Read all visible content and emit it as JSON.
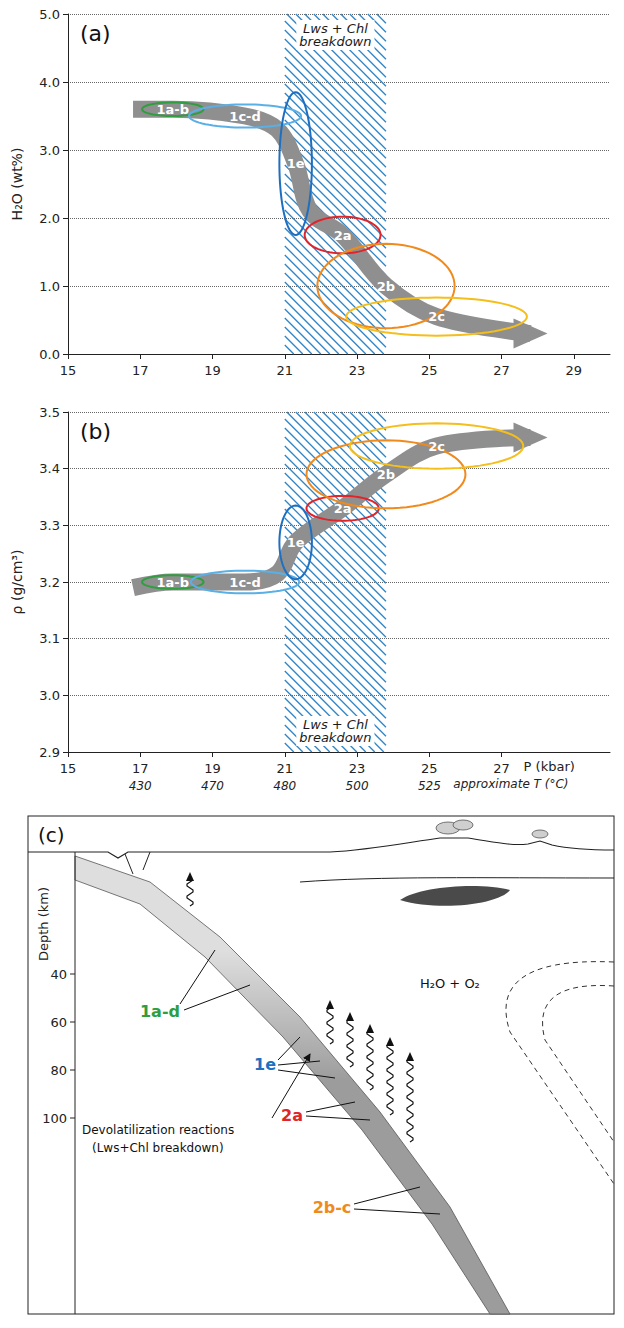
{
  "chart_data": [
    {
      "type": "line",
      "panel_label": "(a)",
      "y_label": "H₂O (wt%)",
      "xlim": [
        15,
        30
      ],
      "xticks": [
        15,
        17,
        19,
        21,
        23,
        25,
        27,
        29
      ],
      "ylim": [
        0,
        5
      ],
      "yticks": [
        {
          "value": 0,
          "label": "0.0"
        },
        {
          "value": 1,
          "label": "1.0"
        },
        {
          "value": 2,
          "label": "2.0"
        },
        {
          "value": 3,
          "label": "3.0"
        },
        {
          "value": 4,
          "label": "4.0"
        },
        {
          "value": 5,
          "label": "5.0"
        }
      ],
      "grid": true,
      "band": {
        "x": [
          21,
          23.8
        ],
        "label": "Lws + Chl breakdown",
        "color": "#2f86c8"
      },
      "series": [
        {
          "x": [
            16.8,
            17.9,
            19.9,
            20.8,
            21.3,
            21.7,
            22.6,
            23.8,
            25.2,
            27.8
          ],
          "values": [
            3.6,
            3.6,
            3.5,
            3.3,
            2.8,
            2.1,
            1.75,
            1.0,
            0.55,
            0.3
          ],
          "color": "#8f8f8f",
          "marker": "arrow",
          "line_style": "solid"
        }
      ],
      "regions": [
        {
          "label": "1a-b",
          "x": 17.9,
          "y": 3.6,
          "x_radius": 0.85,
          "y_radius": 0.1,
          "color": "#2e9e3e"
        },
        {
          "label": "1c-d",
          "x": 19.9,
          "y": 3.5,
          "x_radius": 1.55,
          "y_radius": 0.17,
          "color": "#5ab0e6"
        },
        {
          "label": "1e",
          "x": 21.3,
          "y": 2.8,
          "x_radius": 0.45,
          "y_radius": 1.05,
          "color": "#1f6fc0"
        },
        {
          "label": "2a",
          "x": 22.6,
          "y": 1.75,
          "x_radius": 1.05,
          "y_radius": 0.27,
          "color": "#e0242a"
        },
        {
          "label": "2b",
          "x": 23.8,
          "y": 1.0,
          "x_radius": 1.9,
          "y_radius": 0.62,
          "color": "#f08a1c"
        },
        {
          "label": "2c",
          "x": 25.2,
          "y": 0.55,
          "x_radius": 2.5,
          "y_radius": 0.28,
          "color": "#f5be1a"
        }
      ]
    },
    {
      "type": "line",
      "panel_label": "(b)",
      "y_label": "ρ (g/cm³)",
      "x_label": "P (kbar)",
      "xlim": [
        15,
        30
      ],
      "xticks": [
        15,
        17,
        19,
        21,
        23,
        25,
        27
      ],
      "ylim": [
        2.9,
        3.5
      ],
      "yticks": [
        2.9,
        {
          "value": 3,
          "label": "3.0"
        },
        3.1,
        3.2,
        3.3,
        3.4,
        3.5
      ],
      "grid": true,
      "temperatures": {
        "x": [
          17,
          19,
          21,
          23,
          25
        ],
        "values": [
          430,
          470,
          480,
          500,
          525
        ]
      },
      "temperature_label": "approximate T (°C)",
      "band": {
        "x": [
          21,
          23.8
        ],
        "label": "Lws + Chl breakdown",
        "color": "#2f86c8"
      },
      "series": [
        {
          "x": [
            16.8,
            17.9,
            19.9,
            20.8,
            21.3,
            22.6,
            23.8,
            25.2,
            27.8
          ],
          "values": [
            3.19,
            3.2,
            3.2,
            3.215,
            3.27,
            3.33,
            3.39,
            3.44,
            3.455
          ],
          "color": "#8f8f8f",
          "marker": "arrow",
          "line_style": "solid"
        }
      ],
      "regions": [
        {
          "label": "1a-b",
          "x": 17.9,
          "y": 3.2,
          "x_radius": 0.85,
          "y_radius": 0.012,
          "color": "#2e9e3e"
        },
        {
          "label": "1c-d",
          "x": 19.9,
          "y": 3.2,
          "x_radius": 1.5,
          "y_radius": 0.02,
          "color": "#5ab0e6"
        },
        {
          "label": "1e",
          "x": 21.3,
          "y": 3.27,
          "x_radius": 0.45,
          "y_radius": 0.065,
          "color": "#1f6fc0"
        },
        {
          "label": "2a",
          "x": 22.6,
          "y": 3.33,
          "x_radius": 1.0,
          "y_radius": 0.022,
          "color": "#e0242a"
        },
        {
          "label": "2b",
          "x": 23.8,
          "y": 3.39,
          "x_radius": 2.2,
          "y_radius": 0.06,
          "color": "#f08a1c"
        },
        {
          "label": "2c",
          "x": 25.2,
          "y": 3.44,
          "x_radius": 2.4,
          "y_radius": 0.04,
          "color": "#f5be1a"
        }
      ]
    }
  ],
  "diagram": {
    "panel_label": "(c)",
    "axis_title": "Depth (km)",
    "depth_ticks": [
      40,
      60,
      80,
      100
    ],
    "stages": [
      {
        "label": "1a-d",
        "color": "#2e9e3e"
      },
      {
        "label": "1e",
        "color": "#1f6fc0"
      },
      {
        "label": "2a",
        "color": "#e0242a"
      },
      {
        "label": "2b-c",
        "color": "#f08a1c"
      }
    ],
    "reaction_label": "Devolatilization reactions (Lws+Chl breakdown)",
    "fluid_label": "H₂O + O₂"
  }
}
